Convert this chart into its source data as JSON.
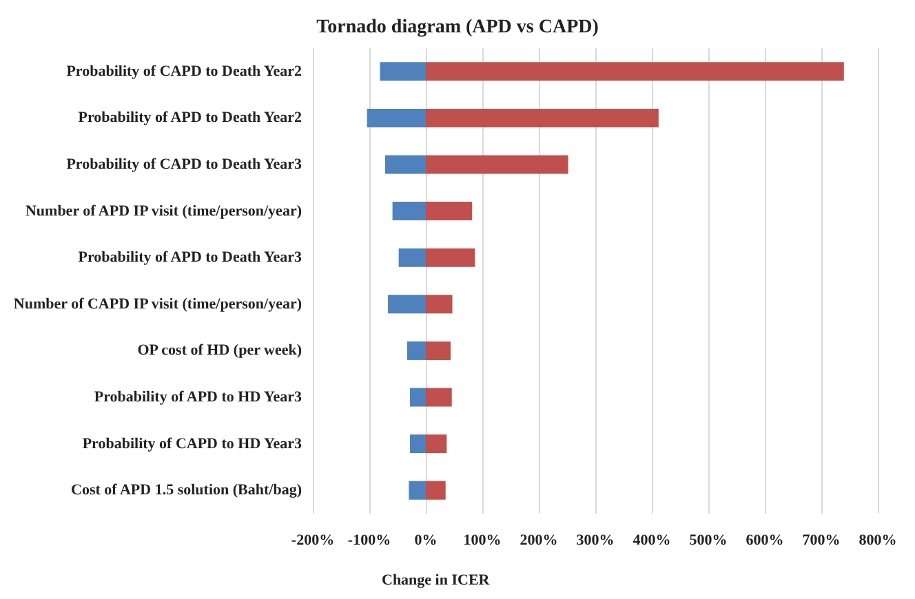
{
  "chart_data": {
    "type": "bar",
    "orientation": "horizontal",
    "stacked": true,
    "title": "Tornado diagram (APD vs CAPD)",
    "xlabel": "Change in ICER",
    "categories": [
      "Probability of CAPD to Death Year2",
      "Probability of APD to Death Year2",
      "Probability of CAPD to Death Year3",
      "Number of APD IP visit (time/person/year)",
      "Probability of APD to Death Year3",
      "Number of CAPD IP visit (time/person/year)",
      "OP cost of HD (per week)",
      "Probability of APD to HD Year3",
      "Probability of CAPD to HD Year3",
      "Cost of APD 1.5 solution (Baht/bag)"
    ],
    "series": [
      {
        "color": "#4f81bd",
        "values": [
          -81,
          -104,
          -72,
          -59,
          -48,
          -67,
          -33,
          -28,
          -28,
          -30
        ]
      },
      {
        "color": "#c0504d",
        "values": [
          740,
          412,
          252,
          82,
          87,
          47,
          44,
          46,
          37,
          35
        ]
      }
    ],
    "xlim": [
      -200,
      800
    ],
    "xticks": [
      {
        "value": -200,
        "label": "-200%"
      },
      {
        "value": -100,
        "label": "-100%"
      },
      {
        "value": 0,
        "label": "0%"
      },
      {
        "value": 100,
        "label": "100%"
      },
      {
        "value": 200,
        "label": "200%"
      },
      {
        "value": 300,
        "label": "300%"
      },
      {
        "value": 400,
        "label": "400%"
      },
      {
        "value": 500,
        "label": "500%"
      },
      {
        "value": 600,
        "label": "600%"
      },
      {
        "value": 700,
        "label": "700%"
      },
      {
        "value": 800,
        "label": "800%"
      }
    ],
    "grid": "x"
  }
}
